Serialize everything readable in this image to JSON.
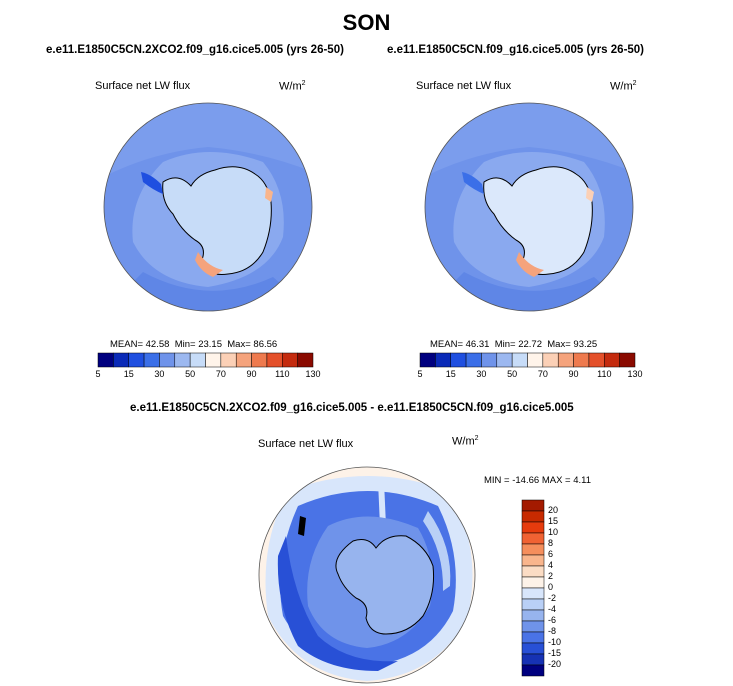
{
  "season_title": "SON",
  "panels": [
    {
      "case": "e.e11.E1850C5CN.2XCO2.f09_g16.cice5.005 (yrs 26-50)",
      "variable": "Surface net LW flux",
      "units": "W/m",
      "units_exp": "2",
      "mean_label": "MEAN=",
      "mean": "42.58",
      "min_label": "Min=",
      "min": "23.15",
      "max_label": "Max=",
      "max": "86.56"
    },
    {
      "case": "e.e11.E1850C5CN.f09_g16.cice5.005 (yrs 26-50)",
      "variable": "Surface net LW flux",
      "units": "W/m",
      "units_exp": "2",
      "mean_label": "MEAN=",
      "mean": "46.31",
      "min_label": "Min=",
      "min": "22.72",
      "max_label": "Max=",
      "max": "93.25"
    }
  ],
  "difference": {
    "case": "e.e11.E1850C5CN.2XCO2.f09_g16.cice5.005 - e.e11.E1850C5CN.f09_g16.cice5.005",
    "variable": "Surface net LW flux",
    "units": "W/m",
    "units_exp": "2",
    "minmax_label": "MIN = -14.66 MAX =   4.11"
  },
  "abs_colorbar": {
    "colors": [
      "#00007f",
      "#0a2ab8",
      "#1f4fe0",
      "#3b6fe8",
      "#6f93ea",
      "#9cb8f0",
      "#c7dcf8",
      "#fff4ea",
      "#fbd0b6",
      "#f5a37c",
      "#ee7a4e",
      "#e4502a",
      "#c42b0e",
      "#8a0a00"
    ],
    "tick_labels": [
      "5",
      "15",
      "30",
      "50",
      "70",
      "90",
      "110",
      "130"
    ]
  },
  "diff_colorbar": {
    "colors": [
      "#a31a00",
      "#c72a00",
      "#e63b0d",
      "#f06233",
      "#f58e5c",
      "#f9b58c",
      "#fbdcc4",
      "#fdf2e8",
      "#d8e6fb",
      "#b9d0f6",
      "#97b4ee",
      "#6f93ea",
      "#4a73e6",
      "#2850d6",
      "#1632b4",
      "#00007f"
    ],
    "tick_labels": [
      "20",
      "15",
      "10",
      "8",
      "6",
      "4",
      "2",
      "0",
      "-2",
      "-4",
      "-6",
      "-8",
      "-10",
      "-15",
      "-20"
    ]
  }
}
